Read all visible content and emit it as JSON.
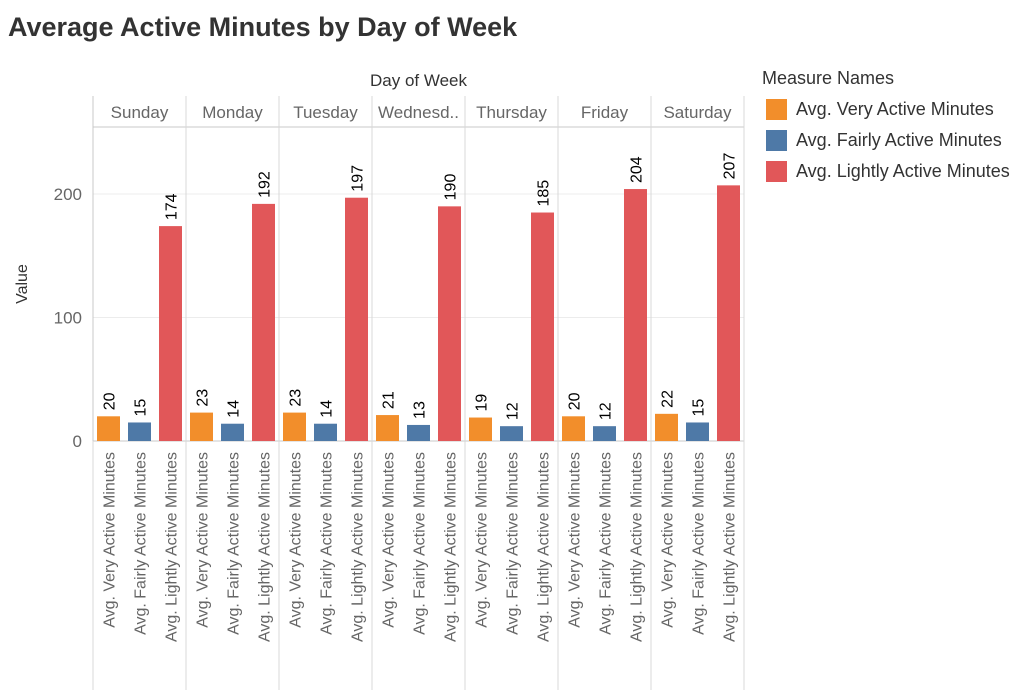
{
  "title": "Average Active Minutes by Day of Week",
  "colors": {
    "very": "#f28e2b",
    "fairly": "#4e79a7",
    "lightly": "#e15759"
  },
  "legend": {
    "title": "Measure Names",
    "items": [
      {
        "label": "Avg. Very Active Minutes",
        "color": "#f28e2b"
      },
      {
        "label": "Avg. Fairly Active Minutes",
        "color": "#4e79a7"
      },
      {
        "label": "Avg. Lightly Active Minutes",
        "color": "#e15759"
      }
    ]
  },
  "chart_data": {
    "type": "bar",
    "title": "Average Active Minutes by Day of Week",
    "column_header": "Day of Week",
    "ylabel": "Value",
    "days": [
      "Sunday",
      "Monday",
      "Tuesday",
      "Wednesd..",
      "Thursday",
      "Friday",
      "Saturday"
    ],
    "measures": [
      "Avg. Very Active Minutes",
      "Avg. Fairly Active Minutes",
      "Avg. Lightly Active Minutes"
    ],
    "series": [
      {
        "name": "Avg. Very Active Minutes",
        "color": "#f28e2b",
        "values": [
          20,
          23,
          23,
          21,
          19,
          20,
          22
        ]
      },
      {
        "name": "Avg. Fairly Active Minutes",
        "color": "#4e79a7",
        "values": [
          15,
          14,
          14,
          13,
          12,
          12,
          15
        ]
      },
      {
        "name": "Avg. Lightly Active Minutes",
        "color": "#e15759",
        "values": [
          174,
          192,
          197,
          190,
          185,
          204,
          207
        ]
      }
    ],
    "yticks": [
      0,
      100,
      200
    ],
    "ylim": [
      0,
      260
    ],
    "grid": true,
    "legend_position": "right"
  }
}
